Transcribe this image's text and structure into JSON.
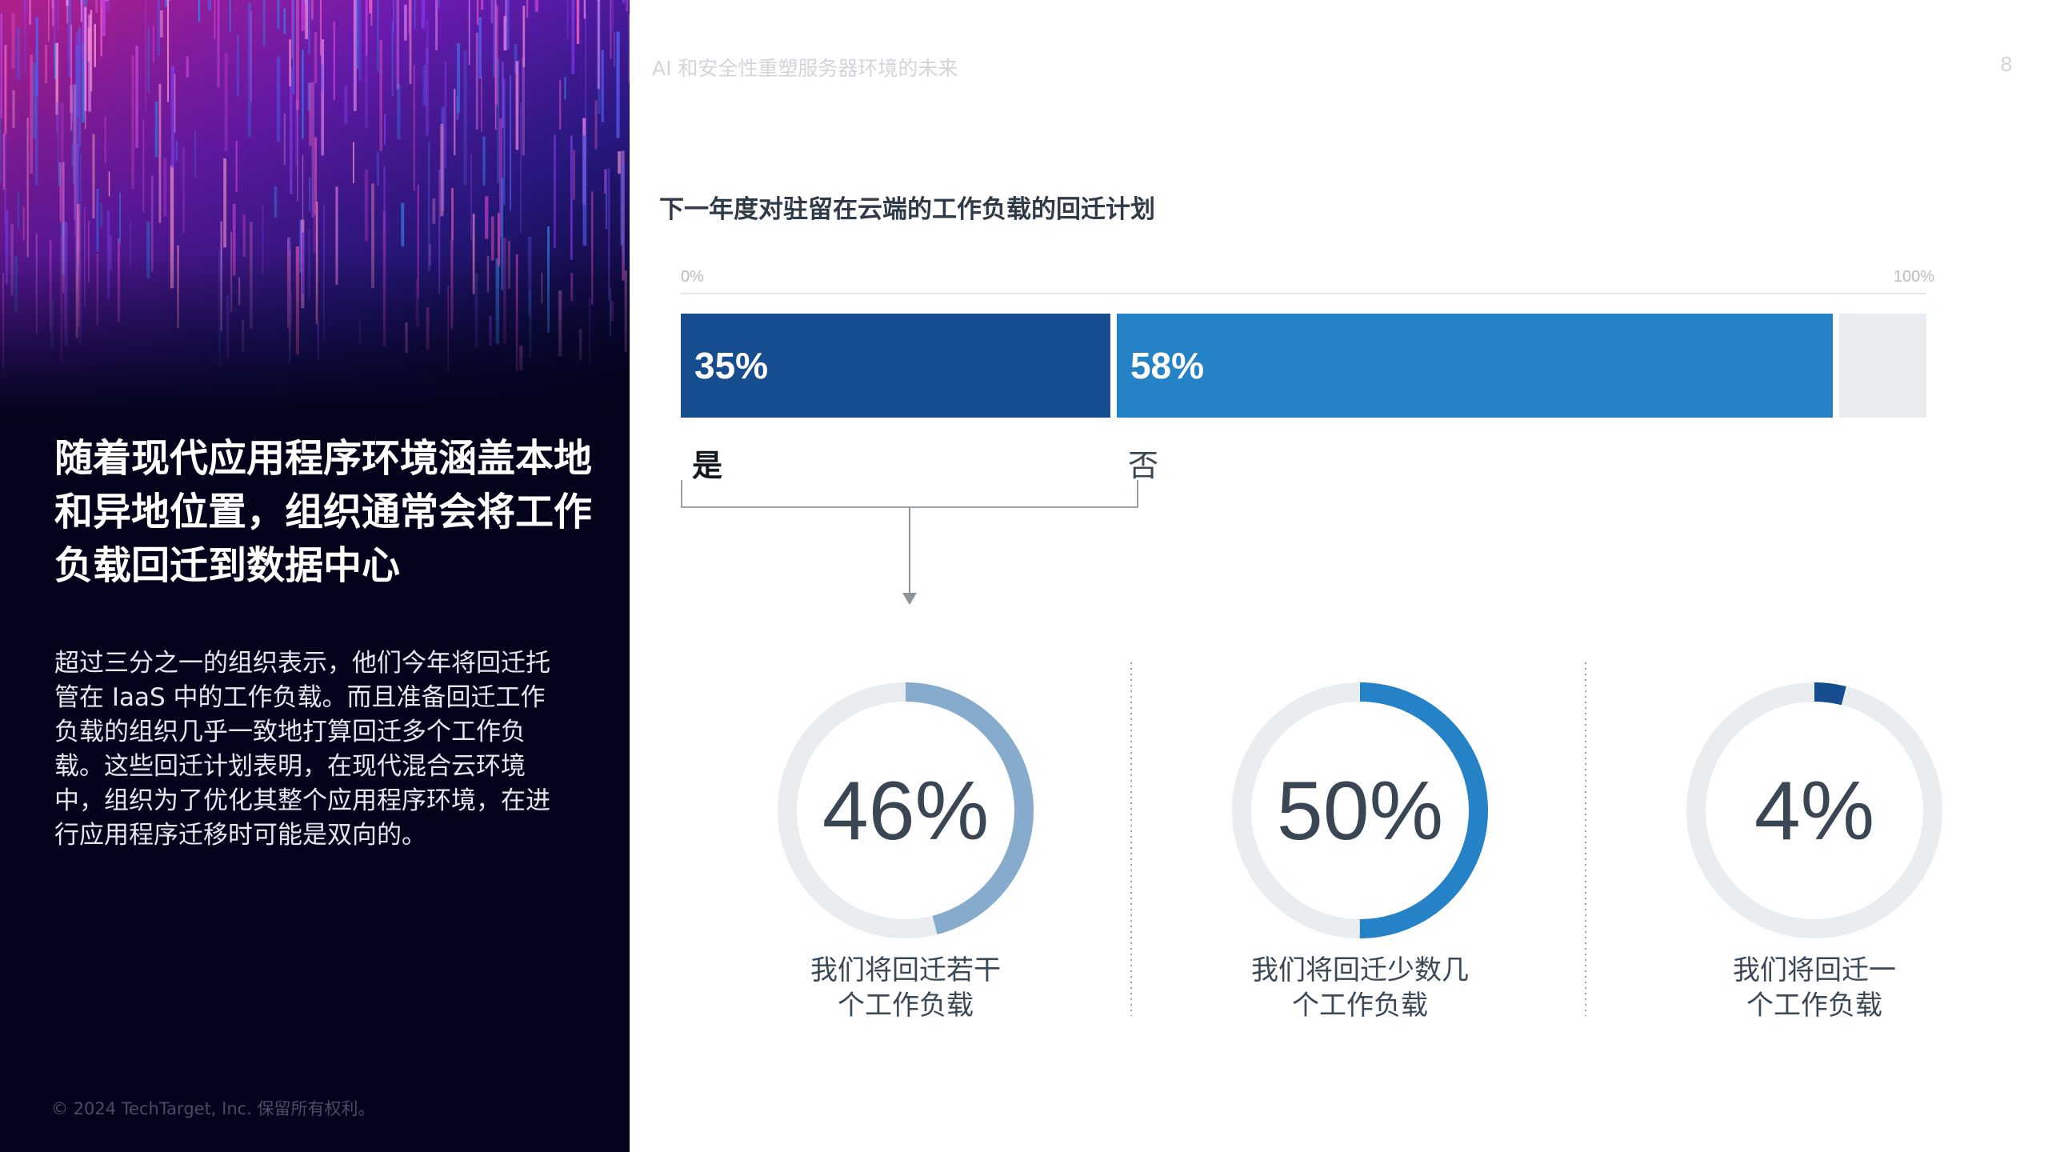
{
  "header": {
    "doc_title": "AI 和安全性重塑服务器环境的未来",
    "page_number": "8"
  },
  "left_panel": {
    "headline": "随着现代应用程序环境涵盖本地和异地位置，组织通常会将工作负载回迁到数据中心",
    "body": "超过三分之一的组织表示，他们今年将回迁托管在 IaaS 中的工作负载。而且准备回迁工作负载的组织几乎一致地打算回迁多个工作负载。这些回迁计划表明，在现代混合云环境中，组织为了优化其整个应用程序环境，在进行应用程序迁移时可能是双向的。",
    "copyright": "© 2024 TechTarget, Inc. 保留所有权利。"
  },
  "colors": {
    "dark_blue": "#154d8f",
    "mid_blue": "#2582c6",
    "light_blue": "#86abcd",
    "track_gray": "#e9edef",
    "panel_bg": "#03031c"
  },
  "chart_data": [
    {
      "type": "bar",
      "orientation": "horizontal-stacked",
      "title": "下一年度对驻留在云端的工作负载的回迁计划",
      "axis_labels": [
        "0%",
        "100%"
      ],
      "xlim": [
        0,
        100
      ],
      "series": [
        {
          "name": "是",
          "value": 35,
          "label": "35%",
          "color": "#154d8f"
        },
        {
          "name": "否",
          "value": 58,
          "label": "58%",
          "color": "#2582c6"
        },
        {
          "name": "",
          "value": 7,
          "label": "",
          "color": "#e9edef"
        }
      ]
    },
    {
      "type": "pie",
      "style": "donut-progress",
      "items": [
        {
          "value": 46,
          "label": "46%",
          "caption_lines": [
            "我们将回迁若干",
            "个工作负载"
          ],
          "color": "#86abcd"
        },
        {
          "value": 50,
          "label": "50%",
          "caption_lines": [
            "我们将回迁少数几",
            "个工作负载"
          ],
          "color": "#2582c6"
        },
        {
          "value": 4,
          "label": "4%",
          "caption_lines": [
            "我们将回迁一",
            "个工作负载"
          ],
          "color": "#154d8f"
        }
      ]
    }
  ]
}
